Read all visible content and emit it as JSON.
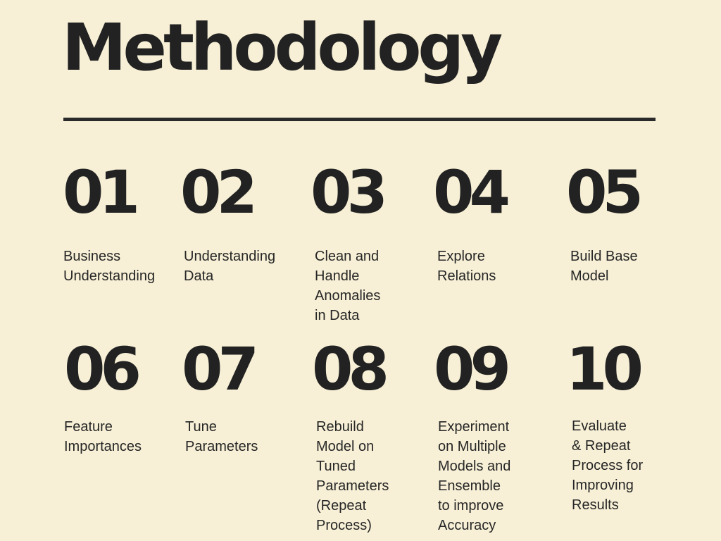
{
  "title": "Methodology",
  "colors": {
    "background": "#f7f0d6",
    "ink": "#222222"
  },
  "steps": [
    {
      "number": "01",
      "label": "Business\nUnderstanding"
    },
    {
      "number": "02",
      "label": "Understanding\nData"
    },
    {
      "number": "03",
      "label": "Clean and\nHandle\nAnomalies\nin Data"
    },
    {
      "number": "04",
      "label": "Explore\nRelations"
    },
    {
      "number": "05",
      "label": "Build Base\nModel"
    },
    {
      "number": "06",
      "label": "Feature\nImportances"
    },
    {
      "number": "07",
      "label": "Tune\nParameters"
    },
    {
      "number": "08",
      "label": "Rebuild\nModel on\nTuned\nParameters\n(Repeat\nProcess)"
    },
    {
      "number": "09",
      "label": "Experiment\non Multiple\nModels and\nEnsemble\nto improve\nAccuracy"
    },
    {
      "number": "10",
      "label": "Evaluate\n& Repeat\nProcess for\nImproving\nResults"
    }
  ]
}
